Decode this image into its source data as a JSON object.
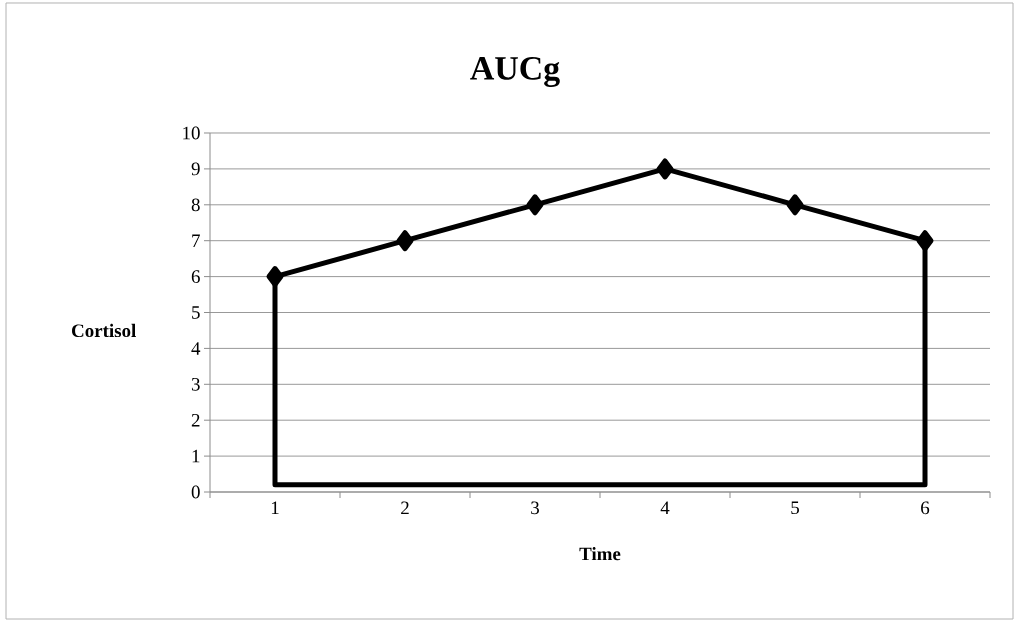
{
  "chart_data": {
    "type": "line",
    "title": "AUCg",
    "xlabel": "Time",
    "ylabel": "Cortisol",
    "categories": [
      "1",
      "2",
      "3",
      "4",
      "5",
      "6"
    ],
    "series": [
      {
        "color": "#000000",
        "values": [
          6,
          7,
          8,
          9,
          8,
          7
        ],
        "marker": "diamond"
      },
      {
        "color": "#000000",
        "x": [
          "1",
          "1",
          "6",
          "6"
        ],
        "values": [
          6,
          0.2,
          0.2,
          7
        ],
        "marker": "none"
      }
    ],
    "ylim": [
      0,
      10
    ],
    "yticks": [
      0,
      1,
      2,
      3,
      4,
      5,
      6,
      7,
      8,
      9,
      10
    ],
    "grid": "y"
  }
}
